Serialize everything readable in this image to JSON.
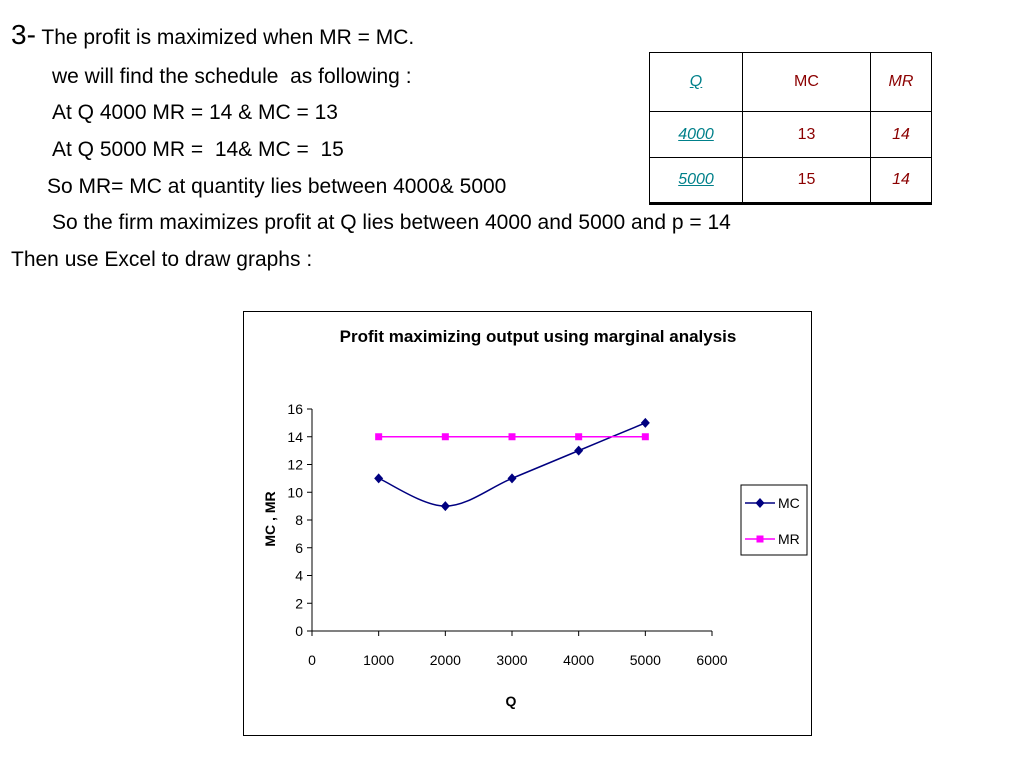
{
  "text": {
    "line1_num": "3-",
    "line1_rest": " The profit is maximized when MR = MC.",
    "line2": "we will find the schedule  as following :",
    "line3": "At Q 4000 MR = 14 & MC = 13",
    "line4": "At Q 5000 MR =  14& MC =  15",
    "line5": "So MR= MC at quantity lies between 4000& 5000",
    "line6": "So the firm maximizes profit at Q lies between 4000 and 5000 and p = 14",
    "line7": "Then use Excel to draw graphs :"
  },
  "table": {
    "headers": [
      "Q",
      "MC",
      "MR"
    ],
    "rows": [
      [
        "4000",
        "13",
        "14"
      ],
      [
        "5000",
        "15",
        "14"
      ]
    ],
    "colors": {
      "q": "#00808a",
      "values": "#8b0000"
    }
  },
  "chart_data": {
    "type": "line",
    "title": "Profit maximizing output using marginal analysis",
    "xlabel": "Q",
    "ylabel": "MC , MR",
    "xlim": [
      0,
      6000
    ],
    "ylim": [
      0,
      16
    ],
    "xticks": [
      "0",
      "1000",
      "2000",
      "3000",
      "4000",
      "5000",
      "6000"
    ],
    "yticks": [
      "0",
      "2",
      "4",
      "6",
      "8",
      "10",
      "12",
      "14",
      "16"
    ],
    "x": [
      1000,
      2000,
      3000,
      4000,
      5000
    ],
    "series": [
      {
        "name": "MC",
        "values": [
          11,
          9,
          11,
          13,
          15
        ],
        "color": "#000080",
        "marker": "diamond"
      },
      {
        "name": "MR",
        "values": [
          14,
          14,
          14,
          14,
          14
        ],
        "color": "#ff00ff",
        "marker": "square"
      }
    ],
    "legend": "right",
    "grid": false
  }
}
